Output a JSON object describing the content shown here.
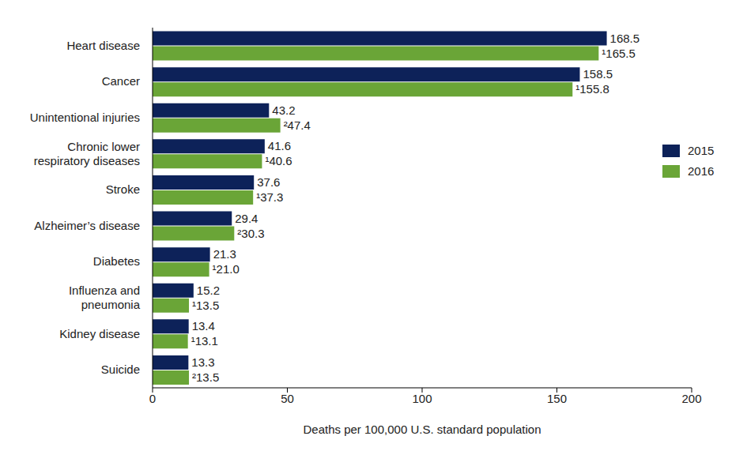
{
  "chart_data": {
    "type": "bar",
    "orientation": "horizontal",
    "categories": [
      "Heart disease",
      "Cancer",
      "Unintentional injuries",
      "Chronic lower respiratory diseases",
      "Stroke",
      "Alzheimer’s disease",
      "Diabetes",
      "Influenza and pneumonia",
      "Kidney disease",
      "Suicide"
    ],
    "series": [
      {
        "name": "2015",
        "color": "#0d2259",
        "values": [
          168.5,
          158.5,
          43.2,
          41.6,
          37.6,
          29.4,
          21.3,
          15.2,
          13.4,
          13.3
        ]
      },
      {
        "name": "2016",
        "color": "#6aa537",
        "values": [
          165.5,
          155.8,
          47.4,
          40.6,
          37.3,
          30.3,
          21.0,
          13.5,
          13.1,
          13.5
        ],
        "value_labels": [
          "¹165.5",
          "¹155.8",
          "²47.4",
          "¹40.6",
          "¹37.3",
          "²30.3",
          "¹21.0",
          "¹13.5",
          "¹13.1",
          "²13.5"
        ]
      }
    ],
    "xlabel": "Deaths per 100,000 U.S. standard population",
    "xlim": [
      0,
      200
    ],
    "xticks": [
      0,
      50,
      100,
      150,
      200
    ],
    "data_labels": true,
    "legend": "right",
    "grid": false
  }
}
